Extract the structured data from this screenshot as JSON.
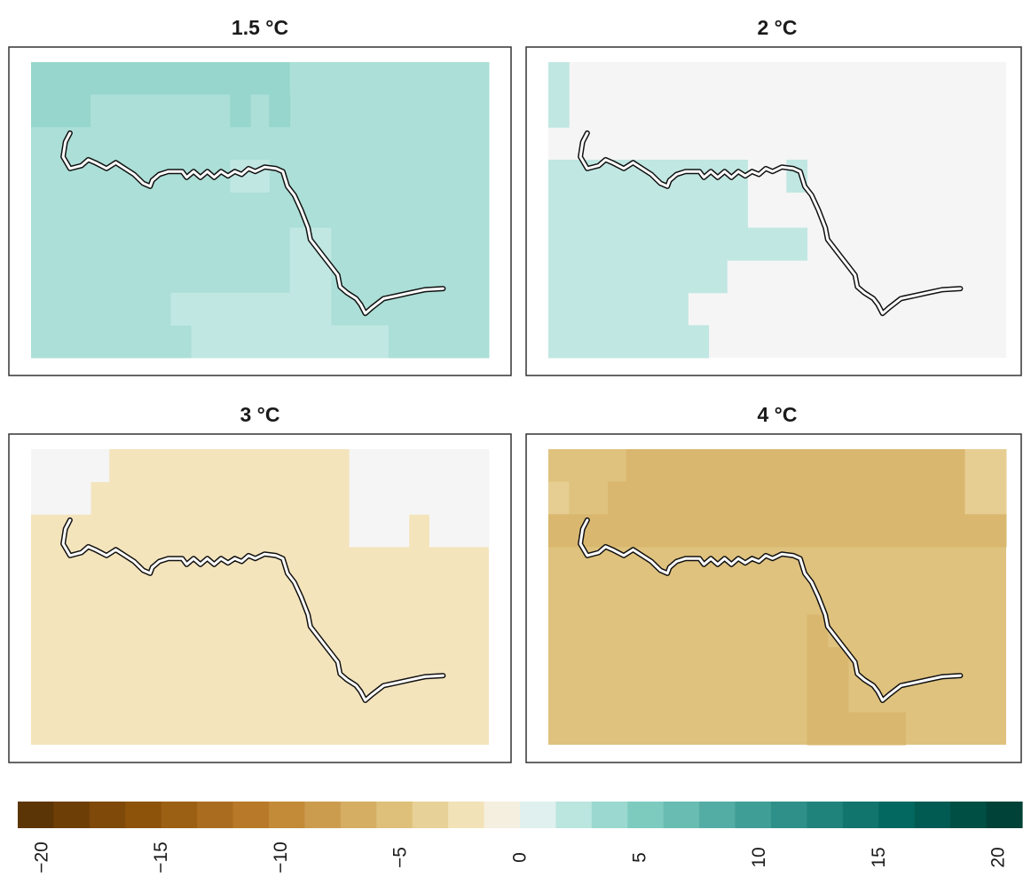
{
  "chart_data": {
    "type": "heatmap",
    "panels": [
      {
        "title": "1.5 °C",
        "base": 3,
        "cells": [
          {
            "value": 4,
            "x0": 0.0,
            "x1": 0.045,
            "y0": 0.0,
            "y1": 0.22
          },
          {
            "value": 4,
            "x0": 0.045,
            "x1": 0.17,
            "y0": 0.0,
            "y1": 0.11
          },
          {
            "value": 4,
            "x0": 0.045,
            "x1": 0.13,
            "y0": 0.11,
            "y1": 0.22
          },
          {
            "value": 4,
            "x0": 0.13,
            "x1": 0.565,
            "y0": 0.0,
            "y1": 0.11
          },
          {
            "value": 3,
            "x0": 0.565,
            "x1": 1.0,
            "y0": 0.0,
            "y1": 1.0
          },
          {
            "value": 4,
            "x0": 0.13,
            "x1": 0.565,
            "y0": 0.11,
            "y1": 0.22
          },
          {
            "value": 3,
            "x0": 0.13,
            "x1": 0.435,
            "y0": 0.11,
            "y1": 0.22
          },
          {
            "value": 4,
            "x0": 0.435,
            "x1": 0.48,
            "y0": 0.11,
            "y1": 0.22
          },
          {
            "value": 3,
            "x0": 0.48,
            "x1": 0.52,
            "y0": 0.11,
            "y1": 0.22
          },
          {
            "value": 4,
            "x0": 0.52,
            "x1": 0.565,
            "y0": 0.11,
            "y1": 0.22
          },
          {
            "value": 3,
            "x0": 0.0,
            "x1": 0.565,
            "y0": 0.22,
            "y1": 1.0
          },
          {
            "value": 2,
            "x0": 0.435,
            "x1": 0.52,
            "y0": 0.33,
            "y1": 0.44
          },
          {
            "value": 2,
            "x0": 0.565,
            "x1": 0.655,
            "y0": 0.56,
            "y1": 1.0
          },
          {
            "value": 2,
            "x0": 0.565,
            "x1": 0.78,
            "y0": 0.89,
            "y1": 1.0
          },
          {
            "value": 2,
            "x0": 0.305,
            "x1": 0.565,
            "y0": 0.78,
            "y1": 0.89
          },
          {
            "value": 2,
            "x0": 0.35,
            "x1": 0.565,
            "y0": 0.89,
            "y1": 1.0
          }
        ]
      },
      {
        "title": "2 °C",
        "base": 0,
        "cells": [
          {
            "value": 2,
            "x0": 0.0,
            "x1": 0.045,
            "y0": 0.0,
            "y1": 0.22
          },
          {
            "value": 2,
            "x0": 0.0,
            "x1": 0.435,
            "y0": 0.33,
            "y1": 0.56
          },
          {
            "value": 2,
            "x0": 0.0,
            "x1": 0.565,
            "y0": 0.56,
            "y1": 0.67
          },
          {
            "value": 2,
            "x0": 0.0,
            "x1": 0.39,
            "y0": 0.67,
            "y1": 0.78
          },
          {
            "value": 2,
            "x0": 0.0,
            "x1": 0.305,
            "y0": 0.78,
            "y1": 0.89
          },
          {
            "value": 2,
            "x0": 0.0,
            "x1": 0.35,
            "y0": 0.89,
            "y1": 1.0
          },
          {
            "value": 2,
            "x0": 0.52,
            "x1": 0.565,
            "y0": 0.33,
            "y1": 0.44
          }
        ]
      },
      {
        "title": "3 °C",
        "base": -2,
        "cells": [
          {
            "value": 0,
            "x0": 0.0,
            "x1": 0.17,
            "y0": 0.0,
            "y1": 0.11
          },
          {
            "value": 0,
            "x0": 0.0,
            "x1": 0.13,
            "y0": 0.11,
            "y1": 0.22
          },
          {
            "value": 0,
            "x0": 0.695,
            "x1": 1.0,
            "y0": 0.0,
            "y1": 0.22
          },
          {
            "value": 0,
            "x0": 0.695,
            "x1": 0.825,
            "y0": 0.22,
            "y1": 0.33
          },
          {
            "value": 0,
            "x0": 0.87,
            "x1": 1.0,
            "y0": 0.22,
            "y1": 0.33
          }
        ]
      },
      {
        "title": "4 °C",
        "base": -5,
        "cells": [
          {
            "value": -5,
            "x0": 0.0,
            "x1": 0.17,
            "y0": 0.0,
            "y1": 0.11
          },
          {
            "value": -4,
            "x0": 0.0,
            "x1": 0.045,
            "y0": 0.11,
            "y1": 0.22
          },
          {
            "value": -5,
            "x0": 0.045,
            "x1": 0.13,
            "y0": 0.11,
            "y1": 0.22
          },
          {
            "value": -6,
            "x0": 0.17,
            "x1": 0.91,
            "y0": 0.0,
            "y1": 0.22
          },
          {
            "value": -6,
            "x0": 0.13,
            "x1": 0.17,
            "y0": 0.11,
            "y1": 0.22
          },
          {
            "value": -4,
            "x0": 0.91,
            "x1": 1.0,
            "y0": 0.0,
            "y1": 0.22
          },
          {
            "value": -6,
            "x0": 0.0,
            "x1": 1.0,
            "y0": 0.22,
            "y1": 0.33
          },
          {
            "value": -6,
            "x0": 0.565,
            "x1": 0.61,
            "y0": 0.56,
            "y1": 0.67
          },
          {
            "value": -6,
            "x0": 0.565,
            "x1": 0.655,
            "y0": 0.67,
            "y1": 0.89
          },
          {
            "value": -6,
            "x0": 0.565,
            "x1": 0.78,
            "y0": 0.89,
            "y1": 1.0
          }
        ]
      }
    ],
    "colorbar": {
      "vmin": -21,
      "vmax": 21,
      "step": 1.5,
      "ticks": [
        -20,
        -15,
        -10,
        -5,
        0,
        5,
        10,
        15,
        20
      ],
      "tick_labels": [
        "−20",
        "−15",
        "−10",
        "−5",
        "0",
        "5",
        "10",
        "15",
        "20"
      ],
      "palette": "brown-to-teal diverging (BrBG)"
    }
  }
}
